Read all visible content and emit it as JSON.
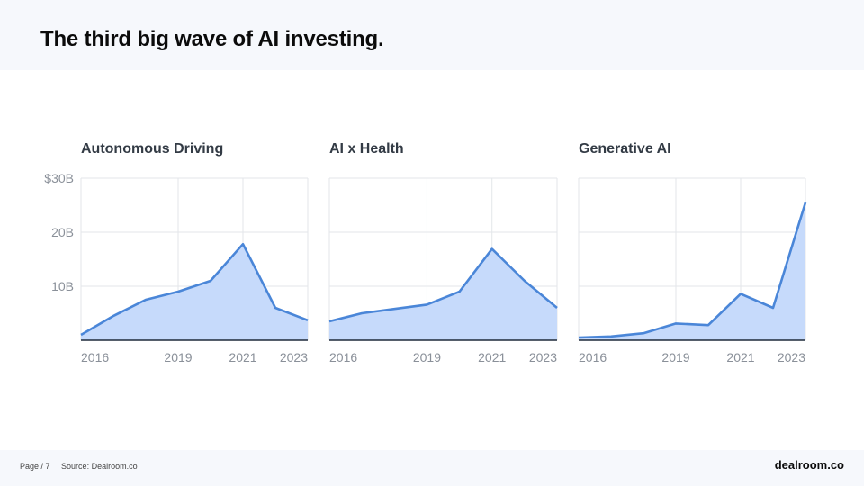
{
  "title": "The third big wave of AI investing.",
  "footer": {
    "page": "Page / 7",
    "source": "Source: Dealroom.co",
    "brand": "dealroom.co"
  },
  "colors": {
    "line": "#4a86d8",
    "fill": "#c6dafb",
    "axis": "#1e2a3a",
    "grid": "#e3e6ea"
  },
  "chart_data": [
    {
      "type": "area",
      "title": "Autonomous Driving",
      "x": [
        2016,
        2017,
        2018,
        2019,
        2020,
        2021,
        2022,
        2023
      ],
      "values": [
        1.0,
        4.5,
        7.5,
        9.0,
        11.0,
        17.8,
        6.0,
        3.7
      ],
      "xticks": [
        "2016",
        "2019",
        "2021",
        "2023"
      ],
      "yticks": [
        "$30B",
        "20B",
        "10B"
      ],
      "ylim": [
        0,
        30
      ]
    },
    {
      "type": "area",
      "title": "AI x Health",
      "x": [
        2016,
        2017,
        2018,
        2019,
        2020,
        2021,
        2022,
        2023
      ],
      "values": [
        3.5,
        5.0,
        5.8,
        6.6,
        9.0,
        16.9,
        11.0,
        6.0
      ],
      "xticks": [
        "2016",
        "2019",
        "2021",
        "2023"
      ],
      "ylim": [
        0,
        30
      ]
    },
    {
      "type": "area",
      "title": "Generative AI",
      "x": [
        2016,
        2017,
        2018,
        2019,
        2020,
        2021,
        2022,
        2023
      ],
      "values": [
        0.5,
        0.7,
        1.3,
        3.1,
        2.8,
        8.6,
        6.0,
        25.5
      ],
      "xticks": [
        "2016",
        "2019",
        "2021",
        "2023"
      ],
      "ylim": [
        0,
        30
      ]
    }
  ]
}
